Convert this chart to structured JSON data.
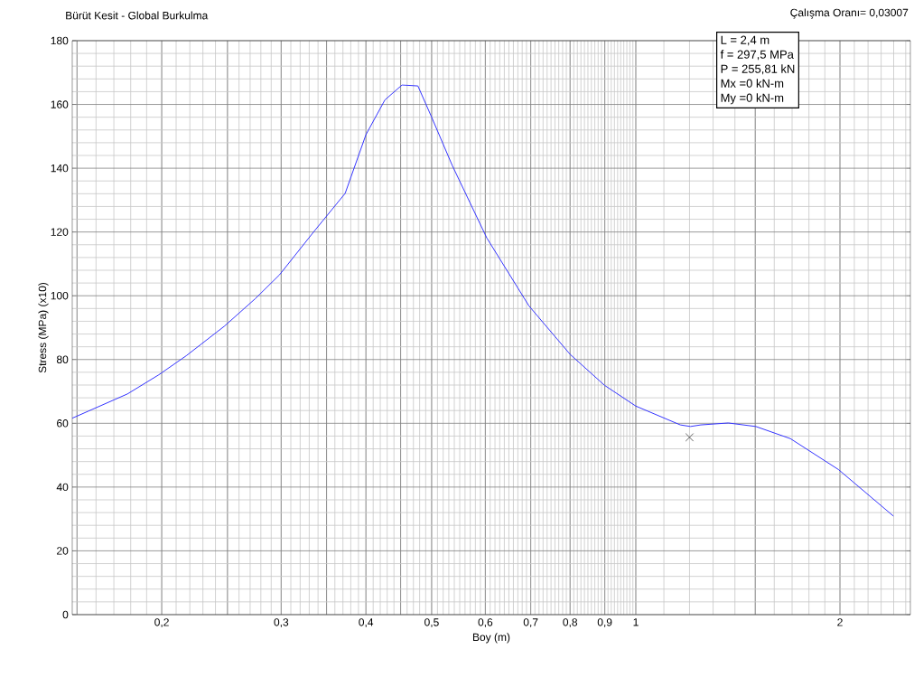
{
  "chart_data": {
    "type": "line",
    "title": "Bürüt Kesit - Global Burkulma",
    "xlabel": "Boy  (m)",
    "ylabel": "Stress (MPa) (x10)",
    "annotations": [
      "Çalışma Oranı= 0,03007",
      "L = 2,4 m",
      "f = 297,5 MPa",
      "P = 255,81 kN",
      "Mx =0 kN-m",
      "My =0 kN-m"
    ],
    "log": "x",
    "grid": true,
    "xlim": [
      0.1476,
      2.54
    ],
    "ylim": [
      0,
      180
    ],
    "xticks": [
      {
        "value": 0.15,
        "label": null
      },
      {
        "value": 0.2,
        "label": "0,2"
      },
      {
        "value": 0.25,
        "label": null
      },
      {
        "value": 0.3,
        "label": "0,3"
      },
      {
        "value": 0.35,
        "label": null
      },
      {
        "value": 0.4,
        "label": "0,4"
      },
      {
        "value": 0.45,
        "label": null
      },
      {
        "value": 0.5,
        "label": "0,5"
      },
      {
        "value": 0.6,
        "label": "0,6"
      },
      {
        "value": 0.7,
        "label": "0,7"
      },
      {
        "value": 0.8,
        "label": "0,8"
      },
      {
        "value": 0.9,
        "label": "0,9"
      },
      {
        "value": 1,
        "label": "1"
      },
      {
        "value": 1.5,
        "label": null
      },
      {
        "value": 2,
        "label": "2"
      }
    ],
    "yticks": [
      0,
      20,
      40,
      60,
      80,
      100,
      120,
      140,
      160,
      180
    ],
    "series": [
      {
        "color": "#3333ff",
        "marker": "none",
        "x": [
          0.1476,
          0.178,
          0.198,
          0.2174,
          0.2472,
          0.2748,
          0.2984,
          0.3355,
          0.3728,
          0.4,
          0.4266,
          0.4522,
          0.4772,
          0.5,
          0.5364,
          0.6031,
          0.6959,
          0.8003,
          0.8994,
          1.0,
          1.163,
          1.204,
          1.247,
          1.369,
          1.503,
          1.69,
          1.99,
          2.398
        ],
        "values": [
          61.6,
          69.2,
          75.2,
          81.2,
          90.4,
          99.1,
          106.6,
          120.2,
          132.1,
          150.5,
          161.4,
          166.1,
          165.8,
          156,
          140.8,
          118.1,
          96.8,
          81.6,
          71.9,
          65.4,
          59.5,
          59,
          59.5,
          60.1,
          59,
          55.2,
          45.5,
          30.9
        ]
      },
      {
        "type": "scatter",
        "color": "#404040",
        "marker": "cross",
        "x": [
          1.2
        ],
        "values": [
          55.6
        ]
      }
    ]
  }
}
